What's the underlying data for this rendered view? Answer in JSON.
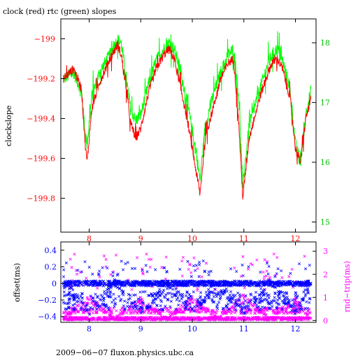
{
  "chart_data": [
    {
      "type": "line",
      "title": "clock (red) rtc (green) slopes",
      "ylabel": "clockslope",
      "y2label": "",
      "x_ticks": [
        8,
        9,
        10,
        11,
        12
      ],
      "xlim": [
        7.45,
        12.4
      ],
      "ylim": [
        -199.97,
        -198.9
      ],
      "y_ticks": [
        -199,
        -199.2,
        -199.4,
        -199.6,
        -199.8
      ],
      "y_tick_labels": [
        "−199",
        "−199.2",
        "−199.4",
        "−199.6",
        "−199.8"
      ],
      "y2lim": [
        14.83,
        18.4
      ],
      "y2_ticks": [
        15,
        16,
        17,
        18
      ],
      "series": [
        {
          "color": "#ff0000",
          "axis": "left",
          "x": [
            7.5,
            7.7,
            7.85,
            7.92,
            7.96,
            8.05,
            8.2,
            8.4,
            8.55,
            8.62,
            8.72,
            8.8,
            8.9,
            9.0,
            9.15,
            9.3,
            9.45,
            9.55,
            9.65,
            9.75,
            9.9,
            10.05,
            10.15,
            10.25,
            10.4,
            10.55,
            10.7,
            10.8,
            10.9,
            10.98,
            11.1,
            11.3,
            11.45,
            11.55,
            11.65,
            11.75,
            11.9,
            12.0,
            12.1,
            12.2,
            12.3
          ],
          "values": [
            -199.2,
            -199.15,
            -199.25,
            -199.52,
            -199.62,
            -199.35,
            -199.22,
            -199.1,
            -199.03,
            -199.08,
            -199.25,
            -199.42,
            -199.5,
            -199.45,
            -199.27,
            -199.15,
            -199.08,
            -199.05,
            -199.1,
            -199.22,
            -199.4,
            -199.63,
            -199.78,
            -199.5,
            -199.35,
            -199.2,
            -199.12,
            -199.1,
            -199.42,
            -199.8,
            -199.5,
            -199.3,
            -199.18,
            -199.12,
            -199.1,
            -199.15,
            -199.3,
            -199.55,
            -199.62,
            -199.4,
            -199.3
          ]
        },
        {
          "color": "#00ff00",
          "axis": "right",
          "x": [
            7.5,
            7.7,
            7.85,
            7.92,
            7.96,
            8.05,
            8.2,
            8.4,
            8.55,
            8.62,
            8.72,
            8.8,
            8.9,
            9.0,
            9.15,
            9.3,
            9.45,
            9.55,
            9.65,
            9.75,
            9.9,
            10.05,
            10.15,
            10.25,
            10.4,
            10.55,
            10.7,
            10.8,
            10.9,
            10.98,
            11.1,
            11.3,
            11.45,
            11.55,
            11.65,
            11.75,
            11.9,
            12.0,
            12.1,
            12.2,
            12.3
          ],
          "values": [
            17.4,
            17.5,
            17.2,
            16.5,
            16.3,
            17.1,
            17.5,
            17.8,
            18.05,
            18.0,
            17.4,
            16.9,
            16.7,
            16.8,
            17.3,
            17.7,
            17.9,
            18.0,
            17.9,
            17.6,
            17.0,
            16.3,
            15.7,
            16.6,
            17.1,
            17.5,
            17.8,
            17.9,
            17.1,
            15.6,
            16.6,
            17.2,
            17.6,
            17.8,
            17.9,
            17.7,
            17.2,
            16.3,
            16.0,
            16.8,
            17.2
          ]
        }
      ]
    },
    {
      "type": "scatter",
      "xlim": [
        7.45,
        12.4
      ],
      "x_ticks": [
        8,
        9,
        10,
        11,
        12
      ],
      "ylabel": "offset(ms)",
      "y2label": "rnd−trip(ms)",
      "ylim": [
        -0.47,
        0.5
      ],
      "y_ticks": [
        0.4,
        0.2,
        0,
        -0.2,
        -0.4
      ],
      "y_tick_labels": [
        "0.4",
        "0.2",
        "0",
        "−0.2",
        "−0.4"
      ],
      "y2lim": [
        -0.08,
        3.4
      ],
      "y2_ticks": [
        0,
        1,
        2,
        3
      ],
      "series": [
        {
          "color": "#0000ff",
          "marker": "x",
          "axis": "left",
          "x": [
            7.5,
            8.0,
            8.5,
            9.0,
            9.5,
            10.0,
            10.5,
            11.0,
            11.5,
            12.0,
            12.3
          ],
          "values": [
            0.0,
            -0.32,
            0.0,
            -0.35,
            0.0,
            -0.32,
            0.0,
            -0.35,
            0.0,
            -0.33,
            0.0
          ]
        },
        {
          "color": "#ff00ff",
          "marker": "x",
          "axis": "right",
          "x": [
            7.5,
            8.0,
            8.5,
            9.0,
            9.5,
            10.0,
            10.5,
            11.0,
            11.5,
            12.0,
            12.3
          ],
          "values": [
            0.1,
            0.9,
            0.1,
            0.85,
            0.1,
            0.9,
            0.1,
            0.95,
            0.1,
            0.85,
            0.1
          ]
        }
      ]
    }
  ],
  "footer": "2009−06−07 fluxon.physics.ubc.ca"
}
